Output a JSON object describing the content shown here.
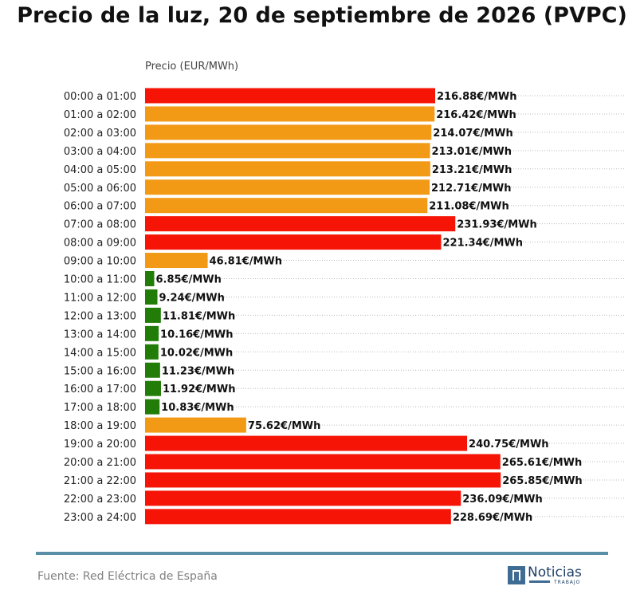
{
  "title": "Precio de la luz, 20 de septiembre de 2026 (PVPC)",
  "source": "Fuente: Red Eléctrica de España",
  "logo": {
    "name": "Noticias",
    "sub": "TRABAJO"
  },
  "colors": {
    "high": "#f51405",
    "mid": "#f29a16",
    "low": "#217d08",
    "footer_line": "#5b8fa8"
  },
  "chart_data": {
    "type": "bar",
    "orientation": "horizontal",
    "xlabel": "Precio (EUR/MWh)",
    "value_suffix": "€/MWh",
    "grid": "dotted horizontal",
    "categories": [
      "00:00 a 01:00",
      "01:00 a 02:00",
      "02:00 a 03:00",
      "03:00 a 04:00",
      "04:00 a 05:00",
      "05:00 a 06:00",
      "06:00 a 07:00",
      "07:00 a 08:00",
      "08:00 a 09:00",
      "09:00 a 10:00",
      "10:00 a 11:00",
      "11:00 a 12:00",
      "12:00 a 13:00",
      "13:00 a 14:00",
      "14:00 a 15:00",
      "15:00 a 16:00",
      "16:00 a 17:00",
      "17:00 a 18:00",
      "18:00 a 19:00",
      "19:00 a 20:00",
      "20:00 a 21:00",
      "21:00 a 22:00",
      "22:00 a 23:00",
      "23:00 a 24:00"
    ],
    "values": [
      216.88,
      216.42,
      214.07,
      213.01,
      213.21,
      212.71,
      211.08,
      231.93,
      221.34,
      46.81,
      6.85,
      9.24,
      11.81,
      10.16,
      10.02,
      11.23,
      11.92,
      10.83,
      75.62,
      240.75,
      265.61,
      265.85,
      236.09,
      228.69
    ],
    "value_labels": [
      "216.88€/MWh",
      "216.42€/MWh",
      "214.07€/MWh",
      "213.01€/MWh",
      "213.21€/MWh",
      "212.71€/MWh",
      "211.08€/MWh",
      "231.93€/MWh",
      "221.34€/MWh",
      "46.81€/MWh",
      "6.85€/MWh",
      "9.24€/MWh",
      "11.81€/MWh",
      "10.16€/MWh",
      "10.02€/MWh",
      "11.23€/MWh",
      "11.92€/MWh",
      "10.83€/MWh",
      "75.62€/MWh",
      "240.75€/MWh",
      "265.61€/MWh",
      "265.85€/MWh",
      "236.09€/MWh",
      "228.69€/MWh"
    ],
    "price_level": [
      "high",
      "mid",
      "mid",
      "mid",
      "mid",
      "mid",
      "mid",
      "high",
      "high",
      "mid",
      "low",
      "low",
      "low",
      "low",
      "low",
      "low",
      "low",
      "low",
      "mid",
      "high",
      "high",
      "high",
      "high",
      "high"
    ]
  }
}
